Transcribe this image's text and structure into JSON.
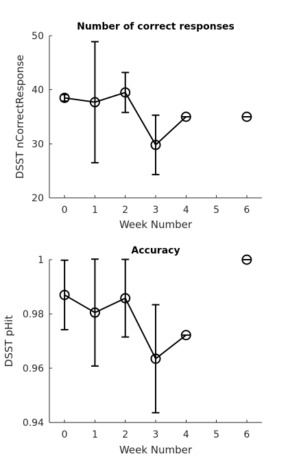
{
  "chart_data": [
    {
      "type": "line",
      "title": "Number of correct responses",
      "xlabel": "Week Number",
      "ylabel": "DSST nCorrectResponse",
      "xlim": [
        -0.5,
        6.5
      ],
      "ylim": [
        20,
        50
      ],
      "xticks": [
        0,
        1,
        2,
        3,
        4,
        5,
        6
      ],
      "yticks": [
        20,
        30,
        40,
        50
      ],
      "series": [
        {
          "x": [
            0,
            1,
            2,
            3,
            4
          ],
          "y": [
            38.5,
            37.7,
            39.5,
            29.8,
            35
          ],
          "err": [
            0.6,
            11.2,
            3.7,
            5.5,
            0
          ],
          "connected": true
        },
        {
          "x": [
            6
          ],
          "y": [
            35
          ],
          "err": [
            0
          ],
          "connected": false
        }
      ]
    },
    {
      "type": "line",
      "title": "Accuracy",
      "xlabel": "Week Number",
      "ylabel": "DSST pHit",
      "xlim": [
        -0.5,
        6.5
      ],
      "ylim": [
        0.94,
        1
      ],
      "xticks": [
        0,
        1,
        2,
        3,
        4,
        5,
        6
      ],
      "yticks": [
        0.94,
        0.96,
        0.98,
        1
      ],
      "series": [
        {
          "x": [
            0,
            1,
            2,
            3,
            4
          ],
          "y": [
            0.987,
            0.9805,
            0.9858,
            0.9635,
            0.9722
          ],
          "err": [
            0.0128,
            0.0197,
            0.0143,
            0.0199,
            0
          ],
          "connected": true
        },
        {
          "x": [
            6
          ],
          "y": [
            1.0
          ],
          "err": [
            0
          ],
          "connected": false
        }
      ]
    }
  ]
}
